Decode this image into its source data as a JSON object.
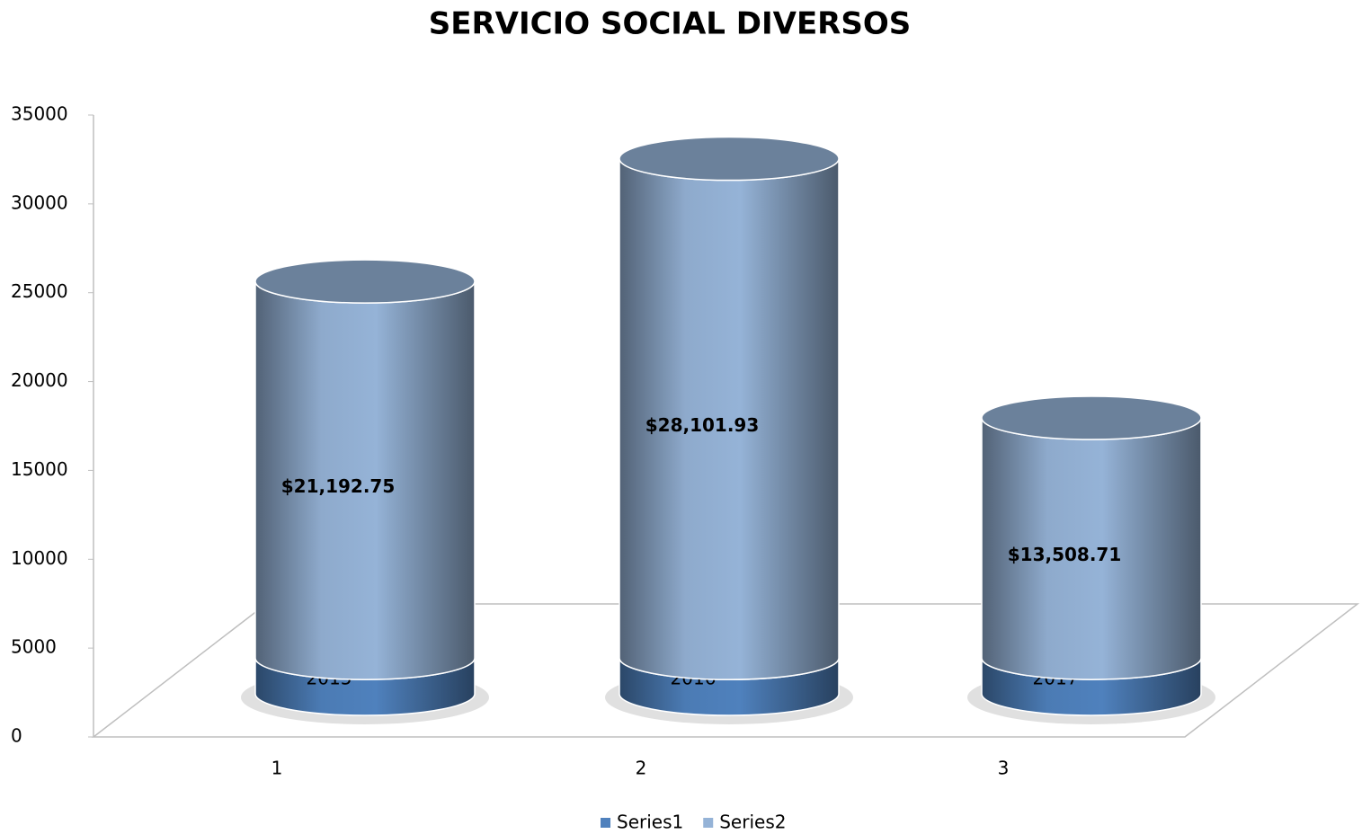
{
  "chart_data": {
    "type": "cylinder3d",
    "title": "SERVICIO SOCIAL DIVERSOS",
    "categories": [
      "1",
      "2",
      "3"
    ],
    "series": [
      {
        "name": "Series1",
        "color": "#4f81bd",
        "values": [
          2015,
          2016,
          2017
        ]
      },
      {
        "name": "Series2",
        "color": "#95b3d7",
        "values": [
          21192.75,
          28101.93,
          13508.71
        ],
        "value_labels": [
          "$21,192.75",
          "$28,101.93",
          "$13,508.71"
        ]
      }
    ],
    "ylim": [
      0,
      35000
    ],
    "yticks": [
      0,
      5000,
      10000,
      15000,
      20000,
      25000,
      30000,
      35000
    ],
    "stacked": true,
    "legend": "bottom"
  }
}
